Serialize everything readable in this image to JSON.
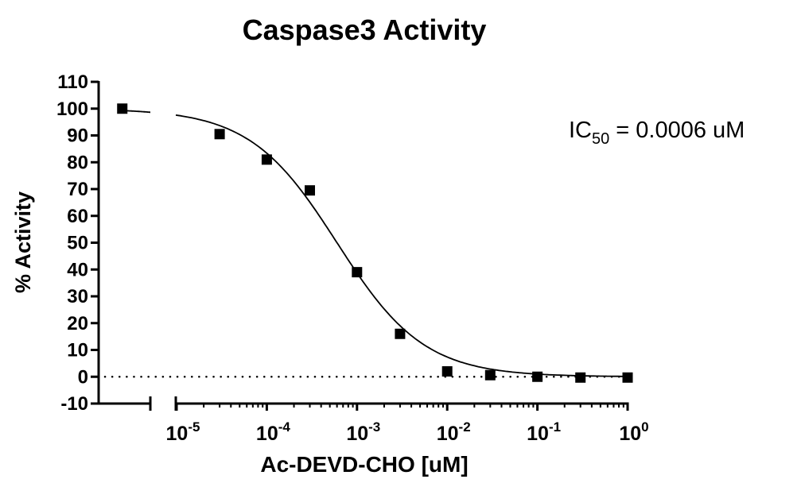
{
  "chart_data": {
    "type": "scatter",
    "title": "Caspase3 Activity",
    "xlabel": "Ac-DEVD-CHO [uM]",
    "ylabel": "% Activity",
    "xscale": "log",
    "xlim": [
      1.2e-06,
      1
    ],
    "x_axis_break": true,
    "ylim": [
      -10,
      110
    ],
    "yticks": [
      "110",
      "100",
      "90",
      "80",
      "70",
      "60",
      "50",
      "40",
      "30",
      "20",
      "10",
      "0",
      "-10"
    ],
    "ytick_values": [
      110,
      100,
      90,
      80,
      70,
      60,
      50,
      40,
      30,
      20,
      10,
      0,
      -10
    ],
    "xticks": [
      {
        "base": "10",
        "exp": "-5",
        "value": 1e-05
      },
      {
        "base": "10",
        "exp": "-4",
        "value": 0.0001
      },
      {
        "base": "10",
        "exp": "-3",
        "value": 0.001
      },
      {
        "base": "10",
        "exp": "-2",
        "value": 0.01
      },
      {
        "base": "10",
        "exp": "-1",
        "value": 0.1
      },
      {
        "base": "10",
        "exp": "0",
        "value": 1
      }
    ],
    "grid": false,
    "legend": "none",
    "baseline": {
      "y": 0,
      "style": "dotted"
    },
    "points": {
      "x": [
        2.5e-06,
        3e-05,
        0.0001,
        0.0003,
        0.001,
        0.003,
        0.01,
        0.03,
        0.1,
        0.3,
        1
      ],
      "y": [
        100,
        90.5,
        81,
        69.5,
        39,
        16,
        2,
        0.6,
        0,
        -0.3,
        -0.3
      ],
      "marker": "square",
      "color": "#000000"
    },
    "fit": {
      "model": "four-parameter logistic",
      "top": 100,
      "bottom": 0,
      "ic50": 0.0006,
      "hill_slope": 0.9,
      "color": "#000000"
    },
    "annotation": {
      "prefix": "IC",
      "subscript": "50",
      "suffix": " = 0.0006 uM"
    }
  }
}
